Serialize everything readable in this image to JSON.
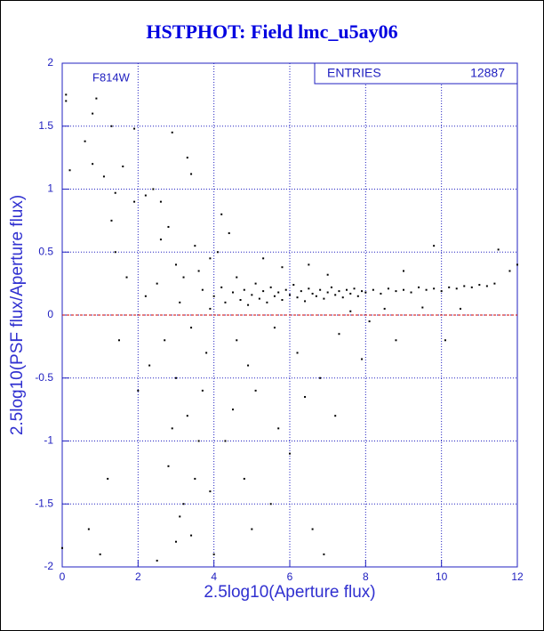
{
  "chart_data": {
    "type": "scatter",
    "title": "HSTPHOT: Field lmc_u5ay06",
    "x_label": "2.5log10(Aperture flux)",
    "y_label": "2.5log10(PSF flux/Aperture flux)",
    "annotation": "F814W",
    "entries": {
      "label": "ENTRIES",
      "value": 12887
    },
    "color": "#000000",
    "reference_line": {
      "value": 0,
      "color": "#cc0000"
    },
    "grid": true,
    "xlim": [
      0,
      12
    ],
    "ylim": [
      -2,
      2
    ],
    "xticks": [
      0,
      2,
      4,
      6,
      8,
      10,
      12
    ],
    "yticks": [
      -2,
      -1.5,
      -1,
      -0.5,
      0,
      0.5,
      1,
      1.5,
      2
    ],
    "x": [
      0.1,
      0.1,
      0.8,
      0.9,
      1.3,
      1.9,
      0.2,
      0.6,
      1.1,
      2.9,
      1.4,
      1.9,
      2.2,
      1.3,
      1.4,
      2.4,
      2.6,
      3.3,
      3.4,
      0.8,
      1.6,
      2.6,
      2.8,
      3.0,
      3.2,
      3.5,
      3.7,
      3.1,
      3.4,
      3.8,
      3.0,
      3.3,
      2.8,
      3.2,
      3.5,
      3.7,
      3.9,
      2.7,
      3.6,
      3.9,
      2.5,
      3.0,
      2.5,
      3.1,
      3.4,
      3.6,
      2.9,
      2.0,
      1.5,
      2.2,
      1.0,
      0.7,
      0.0,
      1.2,
      1.7,
      2.3,
      4.0,
      4.2,
      4.3,
      4.5,
      4.6,
      4.7,
      4.8,
      4.9,
      5.0,
      5.1,
      5.2,
      5.3,
      5.4,
      5.5,
      5.6,
      5.7,
      5.8,
      5.9,
      6.0,
      6.1,
      6.2,
      6.3,
      6.4,
      6.5,
      6.6,
      6.7,
      6.8,
      6.9,
      7.0,
      7.1,
      7.2,
      7.3,
      7.4,
      7.5,
      7.6,
      7.7,
      7.8,
      7.9,
      8.0,
      8.2,
      8.4,
      8.6,
      8.8,
      9.0,
      9.2,
      9.4,
      9.6,
      9.8,
      10.0,
      10.2,
      10.4,
      10.6,
      10.8,
      11.0,
      11.2,
      11.4,
      4.1,
      4.4,
      4.2,
      4.6,
      4.9,
      5.1,
      5.3,
      5.6,
      5.8,
      6.2,
      6.5,
      6.8,
      7.0,
      7.3,
      7.6,
      8.1,
      8.5,
      9.0,
      9.5,
      10.5,
      11.5,
      11.8,
      12.0,
      9.8,
      10.1,
      4.3,
      4.8,
      5.5,
      6.0,
      6.6,
      6.9,
      7.2,
      5.0,
      4.5,
      5.7,
      6.4,
      7.9,
      8.8,
      4.0,
      3.9
    ],
    "y": [
      1.75,
      1.7,
      1.6,
      1.72,
      1.5,
      1.48,
      1.15,
      1.38,
      1.1,
      1.45,
      0.97,
      0.9,
      0.95,
      0.75,
      0.5,
      1.0,
      0.9,
      1.25,
      1.12,
      1.2,
      1.18,
      0.6,
      0.7,
      0.4,
      0.3,
      0.55,
      0.2,
      0.1,
      -0.1,
      -0.3,
      -0.5,
      -0.8,
      -1.2,
      -1.5,
      -1.3,
      -0.6,
      0.05,
      -0.2,
      0.35,
      0.45,
      0.25,
      -1.8,
      -1.95,
      -1.6,
      -1.75,
      -1.0,
      -0.9,
      -0.6,
      -0.2,
      0.15,
      -1.9,
      -1.7,
      -1.85,
      -1.3,
      0.3,
      -0.4,
      0.15,
      0.22,
      0.1,
      0.18,
      0.3,
      0.12,
      0.2,
      0.08,
      0.16,
      0.25,
      0.13,
      0.19,
      0.1,
      0.22,
      0.15,
      0.18,
      0.12,
      0.2,
      0.16,
      0.24,
      0.14,
      0.19,
      0.11,
      0.21,
      0.17,
      0.15,
      0.2,
      0.13,
      0.18,
      0.22,
      0.16,
      0.19,
      0.14,
      0.2,
      0.17,
      0.21,
      0.15,
      0.19,
      0.18,
      0.2,
      0.17,
      0.21,
      0.19,
      0.2,
      0.18,
      0.22,
      0.2,
      0.21,
      0.19,
      0.22,
      0.21,
      0.23,
      0.22,
      0.24,
      0.23,
      0.25,
      0.5,
      0.65,
      0.8,
      -0.2,
      -0.4,
      -0.6,
      0.45,
      -0.1,
      0.38,
      -0.3,
      0.4,
      -0.5,
      0.32,
      -0.15,
      0.03,
      -0.05,
      0.05,
      0.35,
      0.06,
      0.05,
      0.52,
      0.35,
      0.4,
      0.55,
      -0.2,
      -1.0,
      -1.3,
      -1.5,
      -1.1,
      -1.7,
      -1.9,
      -0.8,
      -1.7,
      -0.75,
      -0.9,
      -0.65,
      -0.35,
      -0.2,
      -1.9,
      -1.4
    ]
  }
}
